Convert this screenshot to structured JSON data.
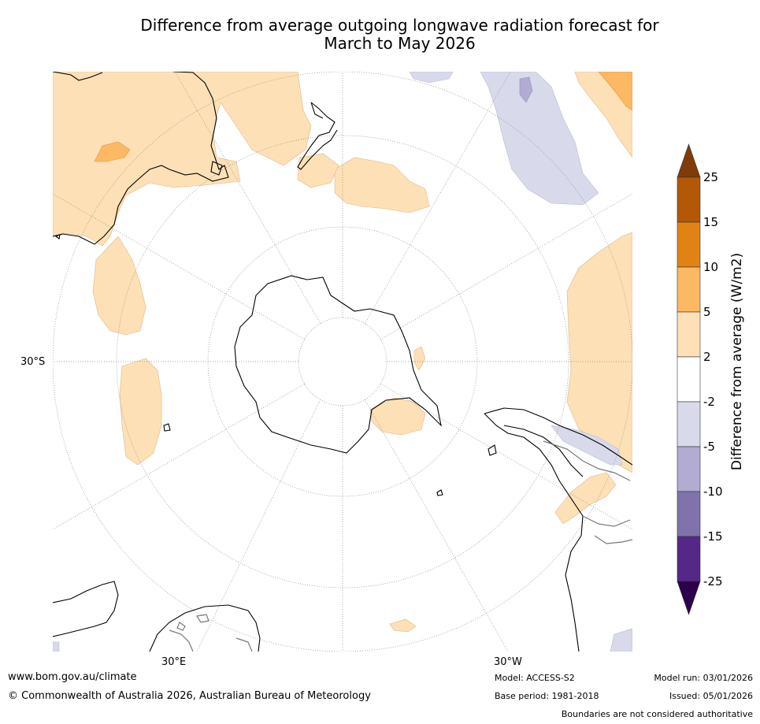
{
  "title_line1": "Difference from average outgoing longwave radiation forecast for",
  "title_line2": "March to May 2026",
  "labels": {
    "lat_30s": "30°S",
    "lon_30e": "30°E",
    "lon_30w": "30°W"
  },
  "colorbar": {
    "title": "Difference from average (W/m2)",
    "ticks": [
      "25",
      "15",
      "10",
      "5",
      "2",
      "-2",
      "-5",
      "-10",
      "-15",
      "-25"
    ],
    "colors": {
      "above_25": "#7f3b08",
      "15_25": "#b35806",
      "10_15": "#e08214",
      "5_10": "#fdb863",
      "2_5": "#fee0b6",
      "neutral": "#ffffff",
      "m5_m2": "#d8daeb",
      "m10_m5": "#b2abd2",
      "m15_m10": "#8073ac",
      "m25_m15": "#542788",
      "below_m25": "#2d004b"
    }
  },
  "footer": {
    "website": "www.bom.gov.au/climate",
    "copyright": "© Commonwealth of Australia 2026, Australian Bureau of Meteorology",
    "model": "Model: ACCESS-S2",
    "base_period": "Base period: 1981-2018",
    "model_run": "Model run: 03/01/2026",
    "issued": "Issued: 05/01/2026",
    "disclaimer": "Boundaries are not considered authoritative"
  }
}
